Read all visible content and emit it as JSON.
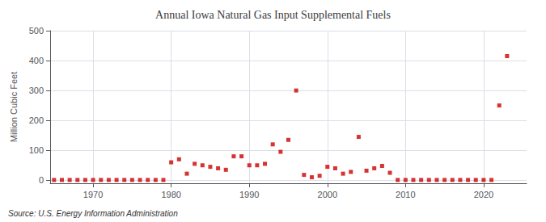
{
  "chart_data": {
    "type": "scatter",
    "title": "Annual Iowa Natural Gas Input Supplemental Fuels",
    "ylabel": "Million Cubic Feet",
    "source": "Source: U.S. Energy Information Administration",
    "color": "#cc0000",
    "marker": "square",
    "grid": true,
    "xlim": [
      1964.5,
      2025.5
    ],
    "ylim": [
      -10,
      500
    ],
    "xticks": [
      1970,
      1980,
      1990,
      2000,
      2010,
      2020
    ],
    "yticks": [
      0,
      100,
      200,
      300,
      400,
      500
    ],
    "x": [
      1965,
      1966,
      1967,
      1968,
      1969,
      1970,
      1971,
      1972,
      1973,
      1974,
      1975,
      1976,
      1977,
      1978,
      1979,
      1980,
      1981,
      1982,
      1983,
      1984,
      1985,
      1986,
      1987,
      1988,
      1989,
      1990,
      1991,
      1992,
      1993,
      1994,
      1995,
      1996,
      1997,
      1998,
      1999,
      2000,
      2001,
      2002,
      2003,
      2004,
      2005,
      2006,
      2007,
      2008,
      2009,
      2010,
      2011,
      2012,
      2013,
      2014,
      2015,
      2016,
      2017,
      2018,
      2019,
      2020,
      2021,
      2022,
      2023
    ],
    "values": [
      1,
      1,
      1,
      1,
      1,
      1,
      1,
      1,
      1,
      1,
      1,
      1,
      1,
      1,
      1,
      60,
      70,
      22,
      55,
      50,
      45,
      40,
      35,
      80,
      80,
      50,
      50,
      55,
      120,
      95,
      135,
      300,
      18,
      10,
      15,
      45,
      40,
      22,
      28,
      145,
      32,
      40,
      48,
      25,
      1,
      1,
      1,
      1,
      1,
      1,
      1,
      1,
      1,
      1,
      1,
      1,
      1,
      250,
      415
    ]
  }
}
